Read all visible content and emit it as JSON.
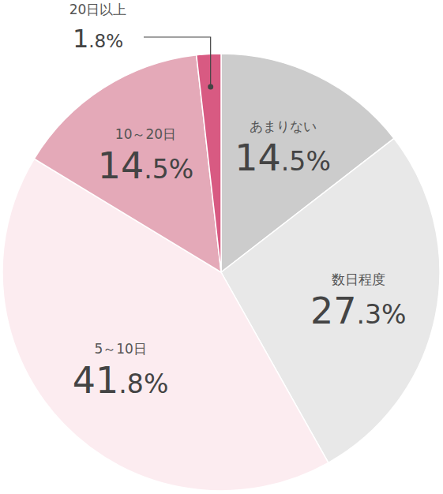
{
  "chart_data": {
    "type": "pie",
    "categories": [
      "あまりない",
      "数日程度",
      "5～10日",
      "10～20日",
      "20日以上"
    ],
    "values": [
      14.5,
      27.3,
      41.8,
      14.5,
      1.8
    ],
    "value_labels": [
      "14.5%",
      "27.3%",
      "41.8%",
      "14.5%",
      "1.8%"
    ],
    "colors": [
      "#cccccc",
      "#e8e8e8",
      "#fcecf0",
      "#e4a9b8",
      "#d85a82"
    ],
    "data_labels": true
  }
}
